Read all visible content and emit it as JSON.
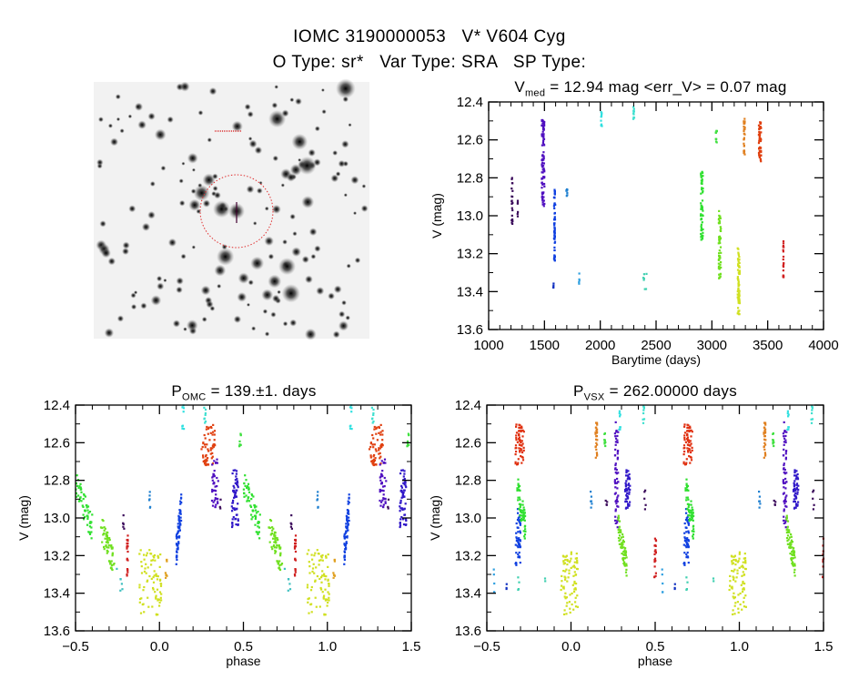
{
  "header": {
    "title_line1": "IOMC 3190000053   V* V604 Cyg",
    "title_line2": "O Type: sr*   Var Type: SRA   SP Type:"
  },
  "image_panel": {
    "description_icon": "star-field-finder-chart",
    "circle_color": "#e03030"
  },
  "chart_data": [
    {
      "id": "lightcurve",
      "type": "scatter",
      "title_main": "V",
      "title_sub": "med",
      "title_rest": " = 12.94 mag <err_V> = 0.07 mag",
      "xlabel": "Barytime (days)",
      "ylabel": "V (mag)",
      "xlim": [
        1000,
        4000
      ],
      "ylim": [
        13.6,
        12.4
      ],
      "y_inverted": true,
      "xticks": [
        1000,
        1500,
        2000,
        2500,
        3000,
        3500,
        4000
      ],
      "xticklabels": [
        "1000",
        "1500",
        "2000",
        "2500",
        "3000",
        "3500",
        "4000"
      ],
      "yticks": [
        12.4,
        12.6,
        12.8,
        13.0,
        13.2,
        13.4,
        13.6
      ],
      "yticklabels": [
        "12.4",
        "12.6",
        "12.8",
        "13.0",
        "13.2",
        "13.4",
        "13.6"
      ],
      "grid": false,
      "clusters": [
        {
          "x": [
            1205,
            1215
          ],
          "y": [
            12.8,
            13.05
          ],
          "color": "#3a0a5a",
          "n": 20
        },
        {
          "x": [
            1258,
            1262
          ],
          "y": [
            12.86,
            13.1
          ],
          "color": "#3a0a5a",
          "n": 6
        },
        {
          "x": [
            1475,
            1500
          ],
          "y": [
            12.49,
            12.95
          ],
          "color": "#5010c0",
          "n": 90
        },
        {
          "x": [
            1585,
            1595
          ],
          "y": [
            12.86,
            13.25
          ],
          "color": "#1040e0",
          "n": 60
        },
        {
          "x": [
            1578,
            1582
          ],
          "y": [
            13.35,
            13.39
          ],
          "color": "#1030c0",
          "n": 4
        },
        {
          "x": [
            1695,
            1705
          ],
          "y": [
            12.86,
            12.94
          ],
          "color": "#2080d0",
          "n": 8
        },
        {
          "x": [
            1808,
            1812
          ],
          "y": [
            13.27,
            13.39
          ],
          "color": "#30a0e0",
          "n": 5
        },
        {
          "x": [
            2005,
            2015
          ],
          "y": [
            12.43,
            12.53
          ],
          "color": "#30e0e0",
          "n": 10
        },
        {
          "x": [
            2295,
            2305
          ],
          "y": [
            12.41,
            12.5
          ],
          "color": "#40e0d0",
          "n": 10
        },
        {
          "x": [
            2370,
            2420
          ],
          "y": [
            13.29,
            13.39
          ],
          "color": "#40d0b0",
          "n": 7
        },
        {
          "x": [
            2900,
            2920
          ],
          "y": [
            12.76,
            13.14
          ],
          "color": "#30e030",
          "n": 60
        },
        {
          "x": [
            3035,
            3045
          ],
          "y": [
            12.55,
            12.62
          ],
          "color": "#40e040",
          "n": 10
        },
        {
          "x": [
            3060,
            3080
          ],
          "y": [
            12.97,
            13.33
          ],
          "color": "#70e020",
          "n": 60
        },
        {
          "x": [
            3230,
            3250
          ],
          "y": [
            13.17,
            13.52
          ],
          "color": "#d0e020",
          "n": 70
        },
        {
          "x": [
            3285,
            3295
          ],
          "y": [
            12.48,
            12.68
          ],
          "color": "#e08020",
          "n": 30
        },
        {
          "x": [
            3420,
            3440
          ],
          "y": [
            12.5,
            12.72
          ],
          "color": "#e04010",
          "n": 50
        },
        {
          "x": [
            3638,
            3642
          ],
          "y": [
            13.1,
            13.33
          ],
          "color": "#d02020",
          "n": 20
        }
      ]
    },
    {
      "id": "phase_omc",
      "type": "scatter",
      "title_main": "P",
      "title_sub": "OMC",
      "title_rest": " = 139.±1. days",
      "period_days": 139,
      "xlabel": "phase",
      "ylabel": "V (mag)",
      "xlim": [
        -0.5,
        1.5
      ],
      "ylim": [
        13.6,
        12.4
      ],
      "y_inverted": true,
      "xticks": [
        -0.5,
        0.0,
        0.5,
        1.0,
        1.5
      ],
      "xticklabels": [
        "−0.5",
        "0.0",
        "0.5",
        "1.0",
        "1.5"
      ],
      "yticks": [
        12.4,
        12.6,
        12.8,
        13.0,
        13.2,
        13.4,
        13.6
      ],
      "yticklabels": [
        "12.4",
        "12.6",
        "12.8",
        "13.0",
        "13.2",
        "13.4",
        "13.6"
      ],
      "grid": false,
      "phase_repeat": 1,
      "clusters": [
        {
          "x": [
            -0.5,
            -0.4
          ],
          "y": [
            12.75,
            13.13
          ],
          "color": "#30e030",
          "n": 60,
          "slope": true
        },
        {
          "x": [
            -0.35,
            -0.27
          ],
          "y": [
            12.97,
            13.32
          ],
          "color": "#70e020",
          "n": 60,
          "slope": true
        },
        {
          "x": [
            -0.26,
            -0.22
          ],
          "y": [
            13.27,
            13.4
          ],
          "color": "#40c0c0",
          "n": 6
        },
        {
          "x": [
            -0.22,
            -0.21
          ],
          "y": [
            12.85,
            13.1
          ],
          "color": "#3a0a5a",
          "n": 5
        },
        {
          "x": [
            -0.195,
            -0.185
          ],
          "y": [
            13.09,
            13.33
          ],
          "color": "#d02020",
          "n": 20
        },
        {
          "x": [
            -0.12,
            0.01
          ],
          "y": [
            13.17,
            13.52
          ],
          "color": "#d0e020",
          "n": 80
        },
        {
          "x": [
            -0.065,
            -0.055
          ],
          "y": [
            12.85,
            12.95
          ],
          "color": "#2080d0",
          "n": 6
        },
        {
          "x": [
            0.035,
            0.045
          ],
          "y": [
            13.22,
            13.33
          ],
          "color": "#e0a020",
          "n": 8
        },
        {
          "x": [
            0.1,
            0.13
          ],
          "y": [
            12.85,
            13.25
          ],
          "color": "#1040e0",
          "n": 60,
          "slope": true,
          "reverse": true
        },
        {
          "x": [
            0.135,
            0.145
          ],
          "y": [
            12.4,
            12.53
          ],
          "color": "#30e0e0",
          "n": 8
        },
        {
          "x": [
            0.265,
            0.275
          ],
          "y": [
            12.4,
            12.5
          ],
          "color": "#40e0d0",
          "n": 8
        },
        {
          "x": [
            0.25,
            0.33
          ],
          "y": [
            12.5,
            12.72
          ],
          "color": "#e04010",
          "n": 60
        },
        {
          "x": [
            0.31,
            0.35
          ],
          "y": [
            12.68,
            12.95
          ],
          "color": "#5010c0",
          "n": 40
        },
        {
          "x": [
            0.355,
            0.365
          ],
          "y": [
            12.9,
            12.95
          ],
          "color": "#3a0a5a",
          "n": 3
        },
        {
          "x": [
            0.43,
            0.47
          ],
          "y": [
            12.74,
            13.05
          ],
          "color": "#3018c8",
          "n": 60
        },
        {
          "x": [
            0.475,
            0.485
          ],
          "y": [
            12.55,
            12.62
          ],
          "color": "#40e040",
          "n": 8
        }
      ]
    },
    {
      "id": "phase_vsx",
      "type": "scatter",
      "title_main": "P",
      "title_sub": "VSX",
      "title_rest": " = 262.00000 days",
      "period_days": 262.0,
      "xlabel": "phase",
      "ylabel": "V (mag)",
      "xlim": [
        -0.5,
        1.5
      ],
      "ylim": [
        13.6,
        12.4
      ],
      "y_inverted": true,
      "xticks": [
        -0.5,
        0.0,
        0.5,
        1.0,
        1.5
      ],
      "xticklabels": [
        "−0.5",
        "0.0",
        "0.5",
        "1.0",
        "1.5"
      ],
      "yticks": [
        12.4,
        12.6,
        12.8,
        13.0,
        13.2,
        13.4,
        13.6
      ],
      "yticklabels": [
        "12.4",
        "12.6",
        "12.8",
        "13.0",
        "13.2",
        "13.4",
        "13.6"
      ],
      "grid": false,
      "phase_repeat": 1,
      "clusters": [
        {
          "x": [
            -0.465,
            -0.455
          ],
          "y": [
            13.27,
            13.4
          ],
          "color": "#30a0e0",
          "n": 5
        },
        {
          "x": [
            -0.385,
            -0.375
          ],
          "y": [
            13.35,
            13.39
          ],
          "color": "#1030c0",
          "n": 3
        },
        {
          "x": [
            -0.33,
            -0.3
          ],
          "y": [
            12.95,
            13.25
          ],
          "color": "#1040e0",
          "n": 50
        },
        {
          "x": [
            -0.33,
            -0.28
          ],
          "y": [
            12.5,
            12.72
          ],
          "color": "#e03010",
          "n": 60
        },
        {
          "x": [
            -0.32,
            -0.27
          ],
          "y": [
            12.76,
            13.14
          ],
          "color": "#30e030",
          "n": 60,
          "slope": true
        },
        {
          "x": [
            -0.315,
            -0.305
          ],
          "y": [
            13.3,
            13.39
          ],
          "color": "#40d0b0",
          "n": 4
        },
        {
          "x": [
            -0.155,
            -0.145
          ],
          "y": [
            13.32,
            13.34
          ],
          "color": "#40d0b0",
          "n": 2
        },
        {
          "x": [
            -0.06,
            0.04
          ],
          "y": [
            13.17,
            13.52
          ],
          "color": "#d0e020",
          "n": 80
        },
        {
          "x": [
            0.115,
            0.125
          ],
          "y": [
            12.85,
            12.95
          ],
          "color": "#2080d0",
          "n": 6
        },
        {
          "x": [
            0.145,
            0.155
          ],
          "y": [
            12.48,
            12.68
          ],
          "color": "#e08020",
          "n": 25
        },
        {
          "x": [
            0.195,
            0.205
          ],
          "y": [
            12.55,
            12.62
          ],
          "color": "#40e040",
          "n": 8
        },
        {
          "x": [
            0.205,
            0.215
          ],
          "y": [
            12.9,
            12.95
          ],
          "color": "#3a0a5a",
          "n": 4
        },
        {
          "x": [
            0.26,
            0.28
          ],
          "y": [
            12.49,
            13.05
          ],
          "color": "#5010c0",
          "n": 60
        },
        {
          "x": [
            0.285,
            0.295
          ],
          "y": [
            12.43,
            12.53
          ],
          "color": "#30e0e0",
          "n": 8
        },
        {
          "x": [
            0.28,
            0.33
          ],
          "y": [
            12.97,
            13.32
          ],
          "color": "#70e020",
          "n": 60,
          "slope": true
        },
        {
          "x": [
            0.32,
            0.35
          ],
          "y": [
            12.74,
            12.95
          ],
          "color": "#3018c8",
          "n": 50
        },
        {
          "x": [
            0.425,
            0.435
          ],
          "y": [
            12.4,
            12.5
          ],
          "color": "#40e0d0",
          "n": 8
        },
        {
          "x": [
            0.435,
            0.445
          ],
          "y": [
            12.85,
            13.1
          ],
          "color": "#3a0a5a",
          "n": 5
        },
        {
          "x": [
            0.495,
            0.505
          ],
          "y": [
            13.1,
            13.33
          ],
          "color": "#d02020",
          "n": 20
        }
      ]
    }
  ]
}
